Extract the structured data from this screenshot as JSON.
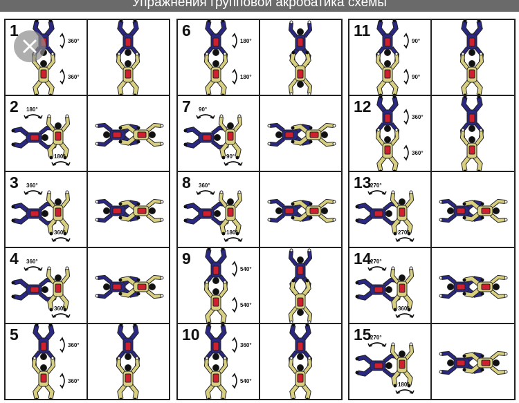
{
  "header": {
    "caption": "Упражнения групповой акробатика схемы"
  },
  "colors": {
    "blue": "#2a2880",
    "yellow": "#d8d080",
    "red": "#d02030",
    "line": "#222222"
  },
  "figures": [
    {
      "n": "1",
      "rot_a": "360°",
      "rot_b": "360°"
    },
    {
      "n": "2",
      "rot_a": "180°",
      "rot_b": "180°"
    },
    {
      "n": "3",
      "rot_a": "360°",
      "rot_b": "360°"
    },
    {
      "n": "4",
      "rot_a": "360°",
      "rot_b": "360°"
    },
    {
      "n": "5",
      "rot_a": "360°",
      "rot_b": "360°"
    },
    {
      "n": "6",
      "rot_a": "180°",
      "rot_b": "180°"
    },
    {
      "n": "7",
      "rot_a": "90°",
      "rot_b": "90°"
    },
    {
      "n": "8",
      "rot_a": "360°",
      "rot_b": "180°"
    },
    {
      "n": "9",
      "rot_a": "540°",
      "rot_b": "540°"
    },
    {
      "n": "10",
      "rot_a": "360°",
      "rot_b": "540°"
    },
    {
      "n": "11",
      "rot_a": "90°",
      "rot_b": "90°"
    },
    {
      "n": "12",
      "rot_a": "360°",
      "rot_b": "360°"
    },
    {
      "n": "13",
      "rot_a": "270°",
      "rot_b": "270°"
    },
    {
      "n": "14",
      "rot_a": "270°",
      "rot_b": "360°"
    },
    {
      "n": "15",
      "rot_a": "270°",
      "rot_b": "180°"
    }
  ],
  "overlay": {
    "icon": "close-icon"
  }
}
